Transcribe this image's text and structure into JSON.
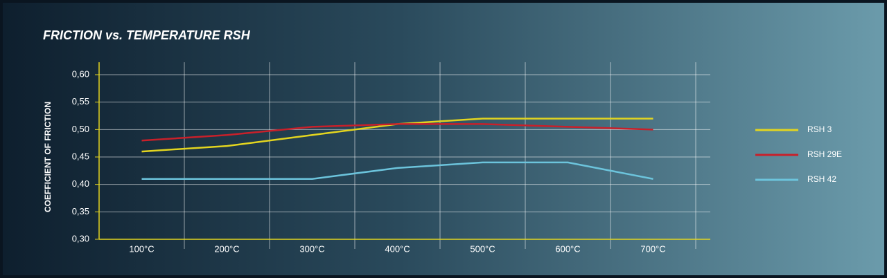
{
  "chart_data": {
    "type": "line",
    "title": "FRICTION vs. TEMPERATURE RSH",
    "y_label": "COEFFICIENT OF FRICTION",
    "categories": [
      "100°C",
      "200°C",
      "300°C",
      "400°C",
      "500°C",
      "600°C",
      "700°C"
    ],
    "series": [
      {
        "name": "RSH 3",
        "color": "#e3d51f",
        "values": [
          0.46,
          0.47,
          0.49,
          0.51,
          0.52,
          0.52,
          0.52
        ]
      },
      {
        "name": "RSH 29E",
        "color": "#c8202a",
        "values": [
          0.48,
          0.49,
          0.505,
          0.51,
          0.51,
          0.505,
          0.5
        ]
      },
      {
        "name": "RSH 42",
        "color": "#6cc4dc",
        "values": [
          0.41,
          0.41,
          0.41,
          0.43,
          0.44,
          0.44,
          0.41
        ]
      }
    ],
    "ylim": [
      0.3,
      0.6
    ],
    "yticks": [
      {
        "value": 0.3,
        "label": "0,30"
      },
      {
        "value": 0.35,
        "label": "0,35"
      },
      {
        "value": 0.4,
        "label": "0,40"
      },
      {
        "value": 0.45,
        "label": "0,45"
      },
      {
        "value": 0.5,
        "label": "0,50"
      },
      {
        "value": 0.55,
        "label": "0,55"
      },
      {
        "value": 0.6,
        "label": "0,60"
      }
    ],
    "grid": true,
    "legend": "right",
    "axis_color": "#e3d51f"
  }
}
